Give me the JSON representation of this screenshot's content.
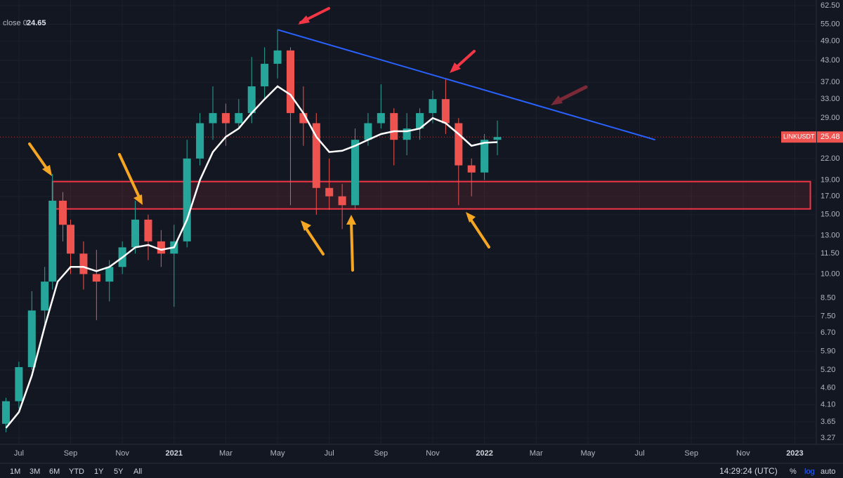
{
  "chart_data": {
    "type": "candlestick",
    "legend_text": "close 0",
    "legend_value": 24.65,
    "symbol": "LINKUSDT",
    "last_price": 25.48,
    "yscale": "log",
    "grid": true,
    "ylim": [
      3.13,
      64.9
    ],
    "yticks": [
      {
        "value": 62.5,
        "label": "62.50"
      },
      {
        "value": 55,
        "label": "55.00"
      },
      {
        "value": 49,
        "label": "49.00"
      },
      {
        "value": 43,
        "label": "43.00"
      },
      {
        "value": 37,
        "label": "37.00"
      },
      {
        "value": 33,
        "label": "33.00"
      },
      {
        "value": 29,
        "label": "29.00"
      },
      {
        "value": 22,
        "label": "22.00"
      },
      {
        "value": 19,
        "label": "19.00"
      },
      {
        "value": 17,
        "label": "17.00"
      },
      {
        "value": 15,
        "label": "15.00"
      },
      {
        "value": 13,
        "label": "13.00"
      },
      {
        "value": 11.5,
        "label": "11.50"
      },
      {
        "value": 10,
        "label": "10.00"
      },
      {
        "value": 8.5,
        "label": "8.50"
      },
      {
        "value": 7.5,
        "label": "7.50"
      },
      {
        "value": 6.7,
        "label": "6.70"
      },
      {
        "value": 5.9,
        "label": "5.90"
      },
      {
        "value": 5.2,
        "label": "5.20"
      },
      {
        "value": 4.6,
        "label": "4.60"
      },
      {
        "value": 4.1,
        "label": "4.10"
      },
      {
        "value": 3.65,
        "label": "3.65"
      },
      {
        "value": 3.27,
        "label": "3.27"
      }
    ],
    "xlim": [
      -0.73,
      30.83
    ],
    "xticks": [
      {
        "value": 0,
        "label": "Jul"
      },
      {
        "value": 2,
        "label": "Sep"
      },
      {
        "value": 4,
        "label": "Nov"
      },
      {
        "value": 6,
        "label": "2021"
      },
      {
        "value": 8,
        "label": "Mar"
      },
      {
        "value": 10,
        "label": "May"
      },
      {
        "value": 12,
        "label": "Jul"
      },
      {
        "value": 14,
        "label": "Sep"
      },
      {
        "value": 16,
        "label": "Nov"
      },
      {
        "value": 18,
        "label": "2022"
      },
      {
        "value": 20,
        "label": "Mar"
      },
      {
        "value": 22,
        "label": "May"
      },
      {
        "value": 24,
        "label": "Jul"
      },
      {
        "value": 26,
        "label": "Sep"
      },
      {
        "value": 28,
        "label": "Nov"
      },
      {
        "value": 30,
        "label": "2023"
      }
    ],
    "up_color": "#26a69a",
    "down_color": "#ef5350",
    "x": [
      -0.5,
      0,
      0.5,
      1,
      1.3,
      1.7,
      2,
      2.5,
      3,
      3.5,
      4,
      4.5,
      5,
      5.5,
      6,
      6.5,
      7,
      7.5,
      8,
      8.5,
      9,
      9.5,
      10,
      10.5,
      11,
      11.5,
      12,
      12.5,
      13,
      13.5,
      14,
      14.5,
      15,
      15.5,
      16,
      16.5,
      17,
      17.5,
      18,
      18.5
    ],
    "open": [
      3.6,
      4.2,
      5.3,
      7.8,
      9.5,
      16.5,
      14,
      11.5,
      10,
      9.5,
      10.5,
      12,
      14.5,
      12.5,
      11.5,
      12.5,
      22,
      28,
      30,
      28,
      30,
      36,
      42,
      46,
      30,
      28,
      18,
      17,
      16,
      25,
      28,
      30,
      25,
      27,
      30,
      33,
      28,
      21,
      20,
      25
    ],
    "high": [
      4.3,
      5.5,
      8.9,
      10.5,
      19.8,
      17.5,
      14.5,
      12.5,
      11.8,
      11,
      12.5,
      16.5,
      15,
      13.5,
      14,
      25,
      30,
      36,
      32,
      33,
      44,
      47,
      53,
      47,
      36,
      30,
      22,
      18.5,
      27,
      30,
      36.5,
      31,
      30,
      31,
      35,
      38,
      29,
      22,
      26,
      28.5
    ],
    "low": [
      3.4,
      4,
      5.2,
      7,
      9,
      12.5,
      10,
      9,
      7.3,
      8.3,
      10,
      11.5,
      11,
      10.5,
      8,
      12,
      21,
      25,
      24,
      27,
      28,
      33,
      38,
      16,
      24,
      15,
      15.5,
      13.6,
      15.5,
      24,
      27,
      21,
      22.5,
      25,
      28,
      26,
      16,
      17,
      19,
      22.5
    ],
    "close": [
      4.2,
      5.3,
      7.8,
      9.5,
      16.5,
      14,
      11.5,
      10,
      9.5,
      10.5,
      12,
      14.5,
      12.5,
      11.5,
      12.5,
      22,
      28,
      30,
      28,
      30,
      36,
      42,
      46,
      30,
      28,
      18,
      17,
      16,
      25,
      28,
      30,
      25,
      27,
      30,
      33,
      28,
      21,
      20,
      25,
      25.48
    ],
    "ma": {
      "color": "#ffffff",
      "x": [
        -0.5,
        0,
        0.5,
        1,
        1.5,
        2,
        2.5,
        3,
        3.5,
        4,
        4.5,
        5,
        5.5,
        6,
        6.5,
        7,
        7.5,
        8,
        8.5,
        9,
        9.5,
        10,
        10.5,
        11,
        11.5,
        12,
        12.5,
        13,
        13.5,
        14,
        14.5,
        15,
        15.5,
        16,
        16.5,
        17,
        17.5,
        18,
        18.5
      ],
      "values": [
        3.5,
        3.9,
        5,
        7,
        9.5,
        10.5,
        10.5,
        10.2,
        10.5,
        11.2,
        12,
        12.2,
        11.8,
        12,
        14.5,
        19,
        23,
        25.5,
        27,
        30,
        33,
        36,
        34,
        30,
        25.5,
        23,
        23.2,
        24,
        25,
        26,
        26.5,
        26.5,
        27,
        29,
        28,
        26,
        24,
        24.5,
        24.6
      ]
    },
    "trendline": {
      "color": "#2962ff",
      "x": [
        10,
        24.6
      ],
      "values": [
        53,
        25
      ]
    },
    "zone": {
      "color": "#f23645",
      "x": [
        1.3,
        30.6
      ],
      "values": [
        18.8,
        15.6
      ]
    }
  },
  "toolbar": {
    "ranges": [
      "1M",
      "3M",
      "6M",
      "YTD",
      "1Y",
      "5Y",
      "All"
    ],
    "time": "14:29:24 (UTC)",
    "percent": "%",
    "log": "log",
    "auto": "auto"
  }
}
